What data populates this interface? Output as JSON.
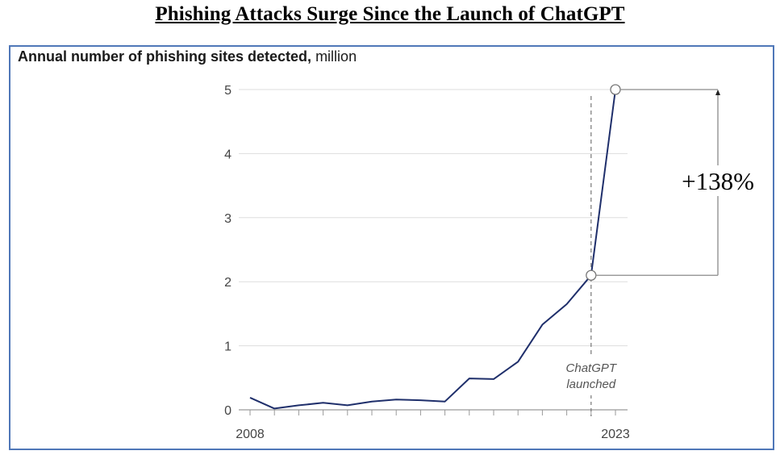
{
  "page": {
    "title": "Phishing Attacks Surge Since the Launch of ChatGPT"
  },
  "chart_data": {
    "type": "line",
    "title": "Annual number of phishing sites detected,",
    "unit": "million",
    "xlabel": "",
    "ylabel": "",
    "ylim": [
      0,
      5
    ],
    "xlim": [
      2008,
      2023
    ],
    "y_ticks": [
      "0",
      "1",
      "2",
      "3",
      "4",
      "5"
    ],
    "x_tick_labels": [
      "2008",
      "2023"
    ],
    "series": [
      {
        "name": "Phishing sites detected",
        "color": "#1f2f6b",
        "points": [
          {
            "x": 2008.0,
            "y": 0.19
          },
          {
            "x": 2009.0,
            "y": 0.02
          },
          {
            "x": 2010.0,
            "y": 0.07
          },
          {
            "x": 2011.0,
            "y": 0.11
          },
          {
            "x": 2012.0,
            "y": 0.07
          },
          {
            "x": 2013.0,
            "y": 0.13
          },
          {
            "x": 2014.0,
            "y": 0.16
          },
          {
            "x": 2015.0,
            "y": 0.15
          },
          {
            "x": 2016.0,
            "y": 0.13
          },
          {
            "x": 2017.0,
            "y": 0.49
          },
          {
            "x": 2018.0,
            "y": 0.48
          },
          {
            "x": 2019.0,
            "y": 0.75
          },
          {
            "x": 2020.0,
            "y": 1.33
          },
          {
            "x": 2021.0,
            "y": 1.65
          },
          {
            "x": 2022.0,
            "y": 2.1
          },
          {
            "x": 2023.0,
            "y": 5.0
          }
        ]
      }
    ],
    "annotations": {
      "event_line": {
        "x": 2022.0,
        "label_line1": "ChatGPT",
        "label_line2": "launched"
      },
      "change": {
        "from": 2.1,
        "to": 5.0,
        "label": "+138%"
      }
    }
  }
}
